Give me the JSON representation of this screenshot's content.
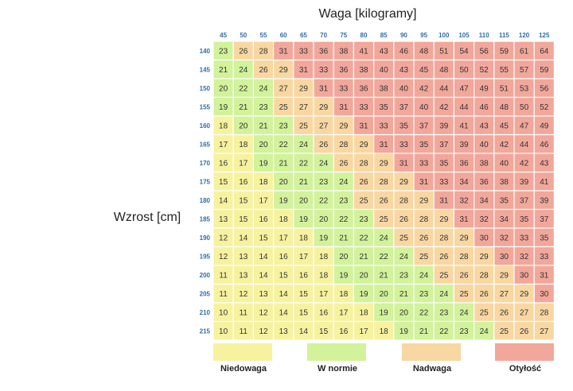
{
  "chart_data": {
    "type": "heatmap",
    "title": "Waga [kilogramy]",
    "xlabel": "Waga [kilogramy]",
    "ylabel": "Wzrost [cm]",
    "x": [
      "45",
      "50",
      "55",
      "60",
      "65",
      "70",
      "75",
      "80",
      "85",
      "90",
      "95",
      "100",
      "105",
      "110",
      "115",
      "120",
      "125"
    ],
    "y": [
      "140",
      "145",
      "150",
      "155",
      "160",
      "165",
      "170",
      "175",
      "180",
      "185",
      "190",
      "195",
      "200",
      "205",
      "210",
      "215"
    ],
    "values": [
      [
        23,
        26,
        28,
        31,
        33,
        36,
        38,
        41,
        43,
        46,
        48,
        51,
        54,
        56,
        59,
        61,
        64
      ],
      [
        21,
        24,
        26,
        29,
        31,
        33,
        36,
        38,
        40,
        43,
        45,
        48,
        50,
        52,
        55,
        57,
        59
      ],
      [
        20,
        22,
        24,
        27,
        29,
        31,
        33,
        36,
        38,
        40,
        42,
        44,
        47,
        49,
        51,
        53,
        56
      ],
      [
        19,
        21,
        23,
        25,
        27,
        29,
        31,
        33,
        35,
        37,
        40,
        42,
        44,
        46,
        48,
        50,
        52
      ],
      [
        18,
        20,
        21,
        23,
        25,
        27,
        29,
        31,
        33,
        35,
        37,
        39,
        41,
        43,
        45,
        47,
        49
      ],
      [
        17,
        18,
        20,
        22,
        24,
        26,
        28,
        29,
        31,
        33,
        35,
        37,
        39,
        40,
        42,
        44,
        46
      ],
      [
        16,
        17,
        19,
        21,
        22,
        24,
        26,
        28,
        29,
        31,
        33,
        35,
        36,
        38,
        40,
        42,
        43
      ],
      [
        15,
        16,
        18,
        20,
        21,
        23,
        24,
        26,
        28,
        29,
        31,
        33,
        34,
        36,
        38,
        39,
        41
      ],
      [
        14,
        15,
        17,
        19,
        20,
        22,
        23,
        25,
        26,
        28,
        29,
        31,
        32,
        34,
        35,
        37,
        39
      ],
      [
        13,
        15,
        16,
        18,
        19,
        20,
        22,
        23,
        25,
        26,
        28,
        29,
        31,
        32,
        34,
        35,
        37
      ],
      [
        12,
        14,
        15,
        17,
        18,
        19,
        21,
        22,
        24,
        25,
        26,
        28,
        29,
        30,
        32,
        33,
        35
      ],
      [
        12,
        13,
        14,
        16,
        17,
        18,
        20,
        21,
        22,
        24,
        25,
        26,
        28,
        29,
        30,
        32,
        33
      ],
      [
        11,
        13,
        14,
        15,
        16,
        18,
        19,
        20,
        21,
        23,
        24,
        25,
        26,
        28,
        29,
        30,
        31
      ],
      [
        11,
        12,
        13,
        14,
        15,
        17,
        18,
        19,
        20,
        21,
        23,
        24,
        25,
        26,
        27,
        29,
        30
      ],
      [
        10,
        11,
        12,
        14,
        15,
        16,
        17,
        18,
        19,
        20,
        22,
        23,
        24,
        25,
        26,
        27,
        28
      ],
      [
        10,
        11,
        12,
        13,
        14,
        15,
        16,
        17,
        18,
        19,
        21,
        22,
        23,
        24,
        25,
        26,
        27
      ]
    ],
    "categories": [
      {
        "name": "Niedowaga",
        "color": "#f7f2a0",
        "max": 18.5
      },
      {
        "name": "W normie",
        "color": "#d2f29b",
        "max": 25
      },
      {
        "name": "Nadwaga",
        "color": "#f8d7a2",
        "max": 30
      },
      {
        "name": "Otyłość",
        "color": "#f2a79b",
        "max": 999
      }
    ],
    "colors": {
      "tick_label": "#2f6ea8",
      "cell_text": "#333333",
      "grid": "#ffffff"
    }
  }
}
